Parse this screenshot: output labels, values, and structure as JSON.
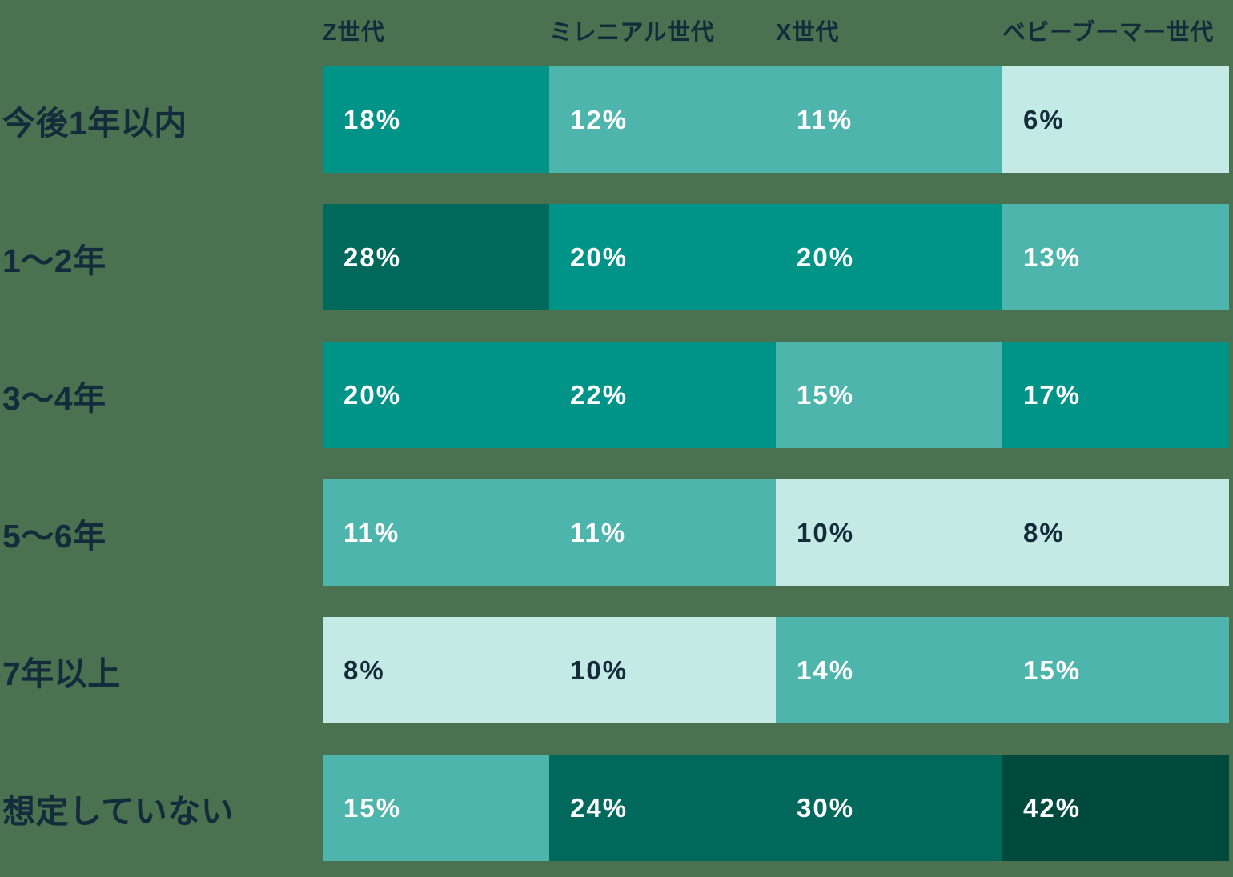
{
  "page": {
    "background_color": "#4A7150",
    "text_dark_color": "#132B3A",
    "text_light_color": "#FFFFFF"
  },
  "chart_data": {
    "type": "heatmap",
    "unit": "%",
    "legend": "none",
    "grid": "off",
    "columns": [
      "Z世代",
      "ミレニアル世代",
      "X世代",
      "ベビーブーマー世代"
    ],
    "rows": [
      "今後1年以内",
      "1〜2年",
      "3〜4年",
      "5〜6年",
      "7年以上",
      "想定していない"
    ],
    "values": [
      [
        18,
        12,
        11,
        6
      ],
      [
        28,
        20,
        20,
        13
      ],
      [
        20,
        22,
        15,
        17
      ],
      [
        11,
        11,
        10,
        8
      ],
      [
        8,
        10,
        14,
        15
      ],
      [
        15,
        24,
        30,
        42
      ]
    ],
    "display": [
      [
        "18%",
        "12%",
        "11%",
        "6%"
      ],
      [
        "28%",
        "20%",
        "20%",
        "13%"
      ],
      [
        "20%",
        "22%",
        "15%",
        "17%"
      ],
      [
        "11%",
        "11%",
        "10%",
        "8%"
      ],
      [
        "8%",
        "10%",
        "14%",
        "15%"
      ],
      [
        "15%",
        "24%",
        "30%",
        "42%"
      ]
    ],
    "color_scale": [
      {
        "max": 10,
        "bg": "#C3EAE4",
        "text": "#132B3A"
      },
      {
        "max": 15,
        "bg": "#4DB5AC",
        "text": "#FFFFFF"
      },
      {
        "max": 23,
        "bg": "#009489",
        "text": "#FFFFFF"
      },
      {
        "max": 40,
        "bg": "#00695C",
        "text": "#FFFFFF"
      },
      {
        "max": 100,
        "bg": "#004A3D",
        "text": "#FFFFFF"
      }
    ]
  }
}
